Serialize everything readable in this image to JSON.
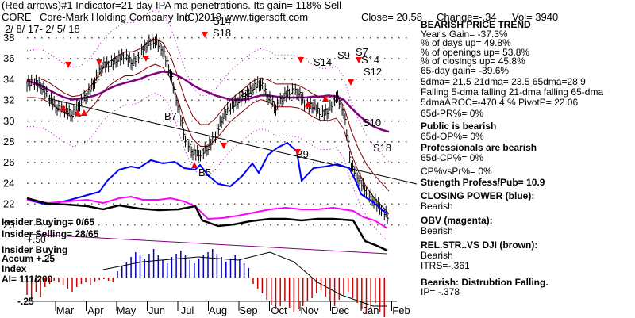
{
  "header": {
    "line1": "(Red arrows)#1 Indicator=21-day IPA ma penetrations. Its gain= 118% Sell",
    "ticker": "CORE",
    "company": "Core-Mark Holding Company Inc",
    "copyright": "(C)2018 www.tigersoft.com",
    "close": "Close=  20.58",
    "change": "Change=-.34",
    "vol": "Vol= 3940",
    "date_range": "2/ 8/ 17-  2/ 5/ 18"
  },
  "right_panel": [
    {
      "text": "BEARISH PRICE TREND",
      "bold": true
    },
    {
      "text": "   Year's Gain= -37.3%",
      "bold": false
    },
    {
      "text": "   % of days up= 49.8%",
      "bold": false
    },
    {
      "text": "   % of openings up= 53.8%",
      "bold": false
    },
    {
      "text": "   % of closings up= 45.8%",
      "bold": false
    },
    {
      "text": "   65-day gain= -39.6%",
      "bold": false
    },
    {
      "text": "5dma= 21.5 21dma= 23.5 65dma=28.9",
      "bold": false
    },
    {
      "text": "Falling 5-dma falling 21-dma  falling 65-dma",
      "bold": false
    },
    {
      "text": "5dmaAROC=-470.4 %  PivotP= 22.06",
      "bold": false
    },
    {
      "text": "       65d-PR%=  0%",
      "bold": false
    },
    {
      "text": "Public is bearish",
      "bold": true
    },
    {
      "text": "       65d-OP%=  0%",
      "bold": false
    },
    {
      "text": "Professionals are bearish",
      "bold": true
    },
    {
      "text": "       65d-CP%=  0%",
      "bold": false
    },
    {
      "text": "CP%vsPr%=  0%",
      "bold": false
    },
    {
      "text": "Strength Profess/Pub= 10.9",
      "bold": true
    },
    {
      "text": "CLOSING POWER (blue):",
      "bold": true
    },
    {
      "text": "Bearish",
      "bold": false
    },
    {
      "text": "OBV (magenta):",
      "bold": true
    },
    {
      "text": "Bearish",
      "bold": false
    },
    {
      "text": "REL.STR..VS DJI (brown):",
      "bold": true
    },
    {
      "text": "Bearish",
      "bold": false
    },
    {
      "text": "ITRS=-.361",
      "bold": false
    },
    {
      "text": "Bearish: Distrubtion Falling.",
      "bold": true
    },
    {
      "text": "     IP= -.378",
      "bold": false
    }
  ],
  "left_panel": {
    "insider_buying": "Insider Buying= 0/65",
    "insider_selling": "Insider Selling= 28/65",
    "plus50": "+.50",
    "insider_buying_label": "Insider Buying",
    "accum": "Accum  +.25",
    "index": "Index",
    "ai": "AI= 111/200",
    "minus25": "-.25"
  },
  "chart_data": {
    "type": "line",
    "price_axis": {
      "ticks": [
        "38",
        "36",
        "34",
        "32",
        "30",
        "28",
        "26",
        "24",
        "22",
        "20"
      ],
      "values": [
        38,
        36,
        34,
        32,
        30,
        28,
        26,
        24,
        22,
        20
      ]
    },
    "months": [
      "Mar",
      "Apr",
      "May",
      "Jun",
      "Jul",
      "Aug",
      "Sep",
      "Oct",
      "Nov",
      "Dec",
      "Jan",
      "Feb"
    ],
    "series": [
      {
        "name": "price",
        "color": "#000000",
        "values": [
          33.5,
          33.7,
          33.2,
          32.1,
          31.2,
          31,
          30.6,
          31.6,
          32.5,
          33.8,
          35.3,
          35.4,
          35.9,
          36.2,
          35.5,
          36.4,
          37.4,
          37.7,
          36.8,
          34.6,
          31.5,
          28.2,
          26.9,
          26.8,
          27.4,
          28.6,
          30.4,
          31.3,
          31.9,
          32.4,
          33.2,
          33.6,
          32.2,
          31.2,
          32.3,
          32.8,
          32.7,
          31.4,
          31.4,
          30.6,
          30.9,
          32.4,
          30.9,
          25.6,
          24.4,
          23.2,
          22.3,
          21.5,
          20.6
        ]
      },
      {
        "name": "21-dma upper band",
        "color": "#800000",
        "values": [
          33.9,
          34,
          34,
          33.6,
          33.1,
          32.6,
          32.3,
          32.4,
          32.9,
          33.8,
          34.9,
          35.7,
          36.2,
          36.6,
          36.6,
          36.9,
          37.5,
          37.8,
          37.5,
          36.3,
          34.2,
          32,
          30.4,
          29.6,
          29.6,
          30.2,
          31.1,
          32,
          32.6,
          33.2,
          33.8,
          34.1,
          33.9,
          33.5,
          33.5,
          33.5,
          33.4,
          33,
          32.5,
          32.2,
          32.2,
          32.4,
          31.4,
          29,
          27.2,
          25.8,
          24.8,
          24,
          23.2
        ]
      },
      {
        "name": "21-dma lower band",
        "color": "#800000",
        "values": [
          32.2,
          32.2,
          32.1,
          31.7,
          31.2,
          30.7,
          30.3,
          30.4,
          30.8,
          31.6,
          32.7,
          33.4,
          33.9,
          34.3,
          34.3,
          34.6,
          35.1,
          35.4,
          35.1,
          34.1,
          32,
          29.8,
          28.2,
          27.5,
          27.5,
          28.1,
          29,
          29.9,
          30.5,
          31.1,
          31.7,
          32,
          31.8,
          31.3,
          31.3,
          31.3,
          31.2,
          30.8,
          30.3,
          30,
          30,
          30.2,
          29.2,
          26.8,
          25,
          23.6,
          22.6,
          21.8,
          21
        ]
      },
      {
        "name": "65-dma",
        "color": "#800080",
        "values": [
          33.8,
          33.6,
          33.3,
          32.9,
          32.5,
          32.2,
          32,
          32.1,
          32.2,
          32.4,
          32.7,
          33.1,
          33.4,
          33.6,
          33.8,
          34,
          34.3,
          34.5,
          34.7,
          34.6,
          34.3,
          33.9,
          33.4,
          33,
          32.7,
          32.4,
          32.2,
          32,
          32,
          32,
          32.2,
          32.4,
          32.4,
          32.3,
          32.2,
          32.2,
          32.2,
          32.2,
          32.3,
          32.3,
          32.4,
          32.3,
          32,
          31.2,
          30.5,
          29.9,
          29.4,
          29.1,
          28.9
        ]
      }
    ]
  },
  "annotations": [
    "S14",
    "S18",
    "S3",
    "B7",
    "B5",
    "B9",
    "S14",
    "S9",
    "S7",
    "S14",
    "S12",
    "S18",
    "S10"
  ],
  "colors": {
    "closing_power": "#0000ff",
    "obv": "#ff00ff",
    "relative_strength": "#8b4513",
    "accum_positive": "#0000cc",
    "accum_negative": "#cc0000",
    "sell_arrow": "#ff0000"
  }
}
